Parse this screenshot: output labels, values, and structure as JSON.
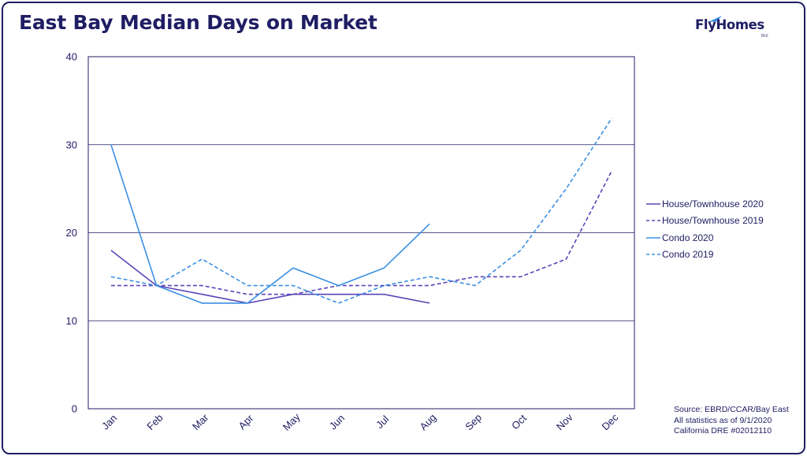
{
  "title": "East Bay Median Days on Market",
  "logo": {
    "text": "FlyHomes",
    "suffix": "Inc"
  },
  "source_lines": [
    "Source: EBRD/CCAR/Bay East",
    "All statistics as of 9/1/2020",
    "California DRE #02012110"
  ],
  "chart_data": {
    "type": "line",
    "title": "East Bay Median Days on Market",
    "categories": [
      "Jan",
      "Feb",
      "Mar",
      "Apr",
      "May",
      "Jun",
      "Jul",
      "Aug",
      "Sep",
      "Oct",
      "Nov",
      "Dec"
    ],
    "ylim": [
      0,
      40
    ],
    "yticks": [
      0,
      10,
      20,
      30,
      40
    ],
    "grid": "horizontal",
    "legend_position": "right",
    "series": [
      {
        "name": "House/Townhouse 2020",
        "color": "#5a45b8",
        "dash": "solid",
        "values": [
          18,
          14,
          13,
          12,
          13,
          13,
          13,
          12,
          null,
          null,
          null,
          null
        ]
      },
      {
        "name": "House/Townhouse 2019",
        "color": "#5a45b8",
        "dash": "dashed",
        "values": [
          14,
          14,
          14,
          13,
          13,
          14,
          14,
          14,
          15,
          15,
          17,
          27
        ]
      },
      {
        "name": "Condo 2020",
        "color": "#3a8fe3",
        "dash": "solid",
        "values": [
          30,
          14,
          12,
          12,
          16,
          14,
          16,
          21,
          null,
          null,
          null,
          null
        ]
      },
      {
        "name": "Condo 2019",
        "color": "#3a8fe3",
        "dash": "dashed",
        "values": [
          15,
          14,
          17,
          14,
          14,
          12,
          14,
          15,
          14,
          18,
          25,
          33
        ]
      }
    ]
  }
}
